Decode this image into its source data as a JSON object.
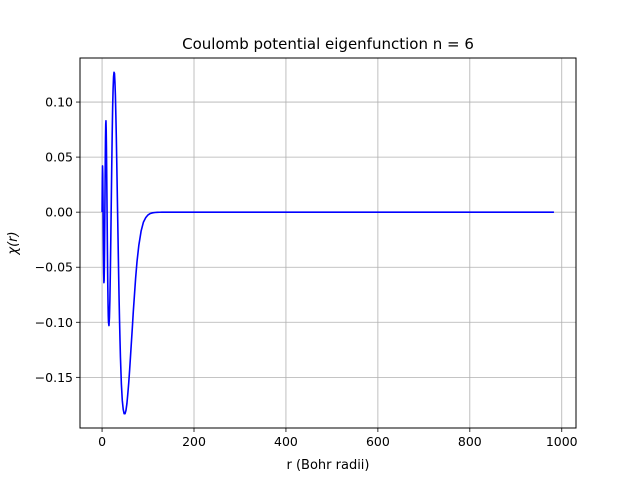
{
  "chart_data": {
    "type": "line",
    "title": "Coulomb potential eigenfunction n = 6",
    "xlabel": "r  (Bohr radii)",
    "ylabel": "χ(r)",
    "xlim": [
      -48,
      1031
    ],
    "ylim": [
      -0.196,
      0.14
    ],
    "x_ticks": [
      0,
      200,
      400,
      600,
      800,
      1000
    ],
    "x_tick_labels": [
      "0",
      "200",
      "400",
      "600",
      "800",
      "1000"
    ],
    "y_ticks": [
      -0.15,
      -0.1,
      -0.05,
      0.0,
      0.05,
      0.1
    ],
    "y_tick_labels": [
      "−0.15",
      "−0.10",
      "−0.05",
      "0.00",
      "0.05",
      "0.10"
    ],
    "grid": true,
    "legend": "none",
    "series": [
      {
        "color": "#0000ff",
        "x": [
          0,
          0.5,
          1,
          1.5,
          2,
          2.5,
          3,
          3.5,
          4,
          4.5,
          5,
          5.5,
          6,
          6.5,
          7,
          7.5,
          8,
          8.5,
          9,
          9.5,
          10,
          10.5,
          11,
          11.5,
          12,
          12.5,
          13,
          13.5,
          14,
          15,
          16,
          17,
          18,
          19,
          20,
          21,
          22,
          23,
          24,
          25,
          26,
          27,
          28,
          29,
          30,
          31,
          32,
          33,
          34,
          35,
          36,
          37,
          38,
          39,
          40,
          42,
          44,
          46,
          48,
          50,
          52,
          54,
          56,
          58,
          60,
          62,
          64,
          66,
          68,
          70,
          73,
          76,
          80,
          85,
          90,
          95,
          100,
          105,
          110,
          115,
          120,
          125,
          130,
          135,
          140,
          145,
          150,
          160,
          180,
          200,
          300,
          400,
          500,
          600,
          700,
          800,
          900,
          983
        ],
        "y": [
          0,
          0.03,
          0.042,
          0.035,
          0.015,
          -0.01,
          -0.035,
          -0.055,
          -0.064,
          -0.062,
          -0.05,
          -0.03,
          -0.005,
          0.022,
          0.048,
          0.068,
          0.08,
          0.083,
          0.075,
          0.06,
          0.04,
          0.018,
          -0.005,
          -0.028,
          -0.05,
          -0.068,
          -0.083,
          -0.094,
          -0.1,
          -0.103,
          -0.096,
          -0.08,
          -0.055,
          -0.025,
          0.008,
          0.04,
          0.07,
          0.095,
          0.112,
          0.123,
          0.127,
          0.126,
          0.118,
          0.106,
          0.088,
          0.068,
          0.045,
          0.02,
          -0.005,
          -0.03,
          -0.055,
          -0.078,
          -0.098,
          -0.116,
          -0.132,
          -0.156,
          -0.171,
          -0.179,
          -0.183,
          -0.183,
          -0.18,
          -0.174,
          -0.165,
          -0.155,
          -0.143,
          -0.13,
          -0.117,
          -0.104,
          -0.09,
          -0.078,
          -0.06,
          -0.045,
          -0.03,
          -0.017,
          -0.009,
          -0.005,
          -0.0025,
          -0.0012,
          -0.0006,
          -0.0003,
          -0.00015,
          -8e-05,
          -4e-05,
          -2e-05,
          -1e-05,
          0,
          0,
          0,
          0,
          0,
          0,
          0,
          0,
          0,
          0,
          0,
          0,
          0
        ]
      }
    ]
  }
}
